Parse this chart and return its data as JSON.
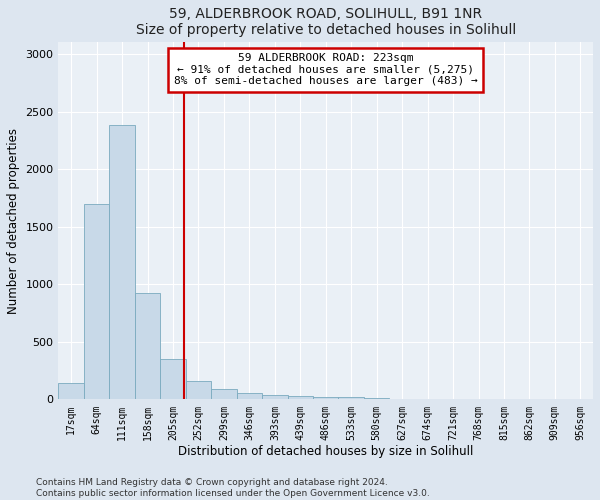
{
  "title1": "59, ALDERBROOK ROAD, SOLIHULL, B91 1NR",
  "title2": "Size of property relative to detached houses in Solihull",
  "xlabel": "Distribution of detached houses by size in Solihull",
  "ylabel": "Number of detached properties",
  "bar_color": "#c8d9e8",
  "bar_edge_color": "#7aaabf",
  "bin_labels": [
    "17sqm",
    "64sqm",
    "111sqm",
    "158sqm",
    "205sqm",
    "252sqm",
    "299sqm",
    "346sqm",
    "393sqm",
    "439sqm",
    "486sqm",
    "533sqm",
    "580sqm",
    "627sqm",
    "674sqm",
    "721sqm",
    "768sqm",
    "815sqm",
    "862sqm",
    "909sqm",
    "956sqm"
  ],
  "bar_values": [
    140,
    1700,
    2380,
    920,
    350,
    160,
    90,
    55,
    38,
    28,
    22,
    18,
    8,
    5,
    4,
    3,
    3,
    2,
    2,
    2,
    2
  ],
  "vline_x": 4.42,
  "vline_color": "#cc0000",
  "annotation_line1": "59 ALDERBROOK ROAD: 223sqm",
  "annotation_line2": "← 91% of detached houses are smaller (5,275)",
  "annotation_line3": "8% of semi-detached houses are larger (483) →",
  "annotation_box_color": "#ffffff",
  "annotation_box_edge": "#cc0000",
  "ylim": [
    0,
    3100
  ],
  "yticks": [
    0,
    500,
    1000,
    1500,
    2000,
    2500,
    3000
  ],
  "footer": "Contains HM Land Registry data © Crown copyright and database right 2024.\nContains public sector information licensed under the Open Government Licence v3.0.",
  "background_color": "#dde6f0",
  "plot_bg_color": "#eaf0f6",
  "fig_width": 6.0,
  "fig_height": 5.0,
  "dpi": 100
}
